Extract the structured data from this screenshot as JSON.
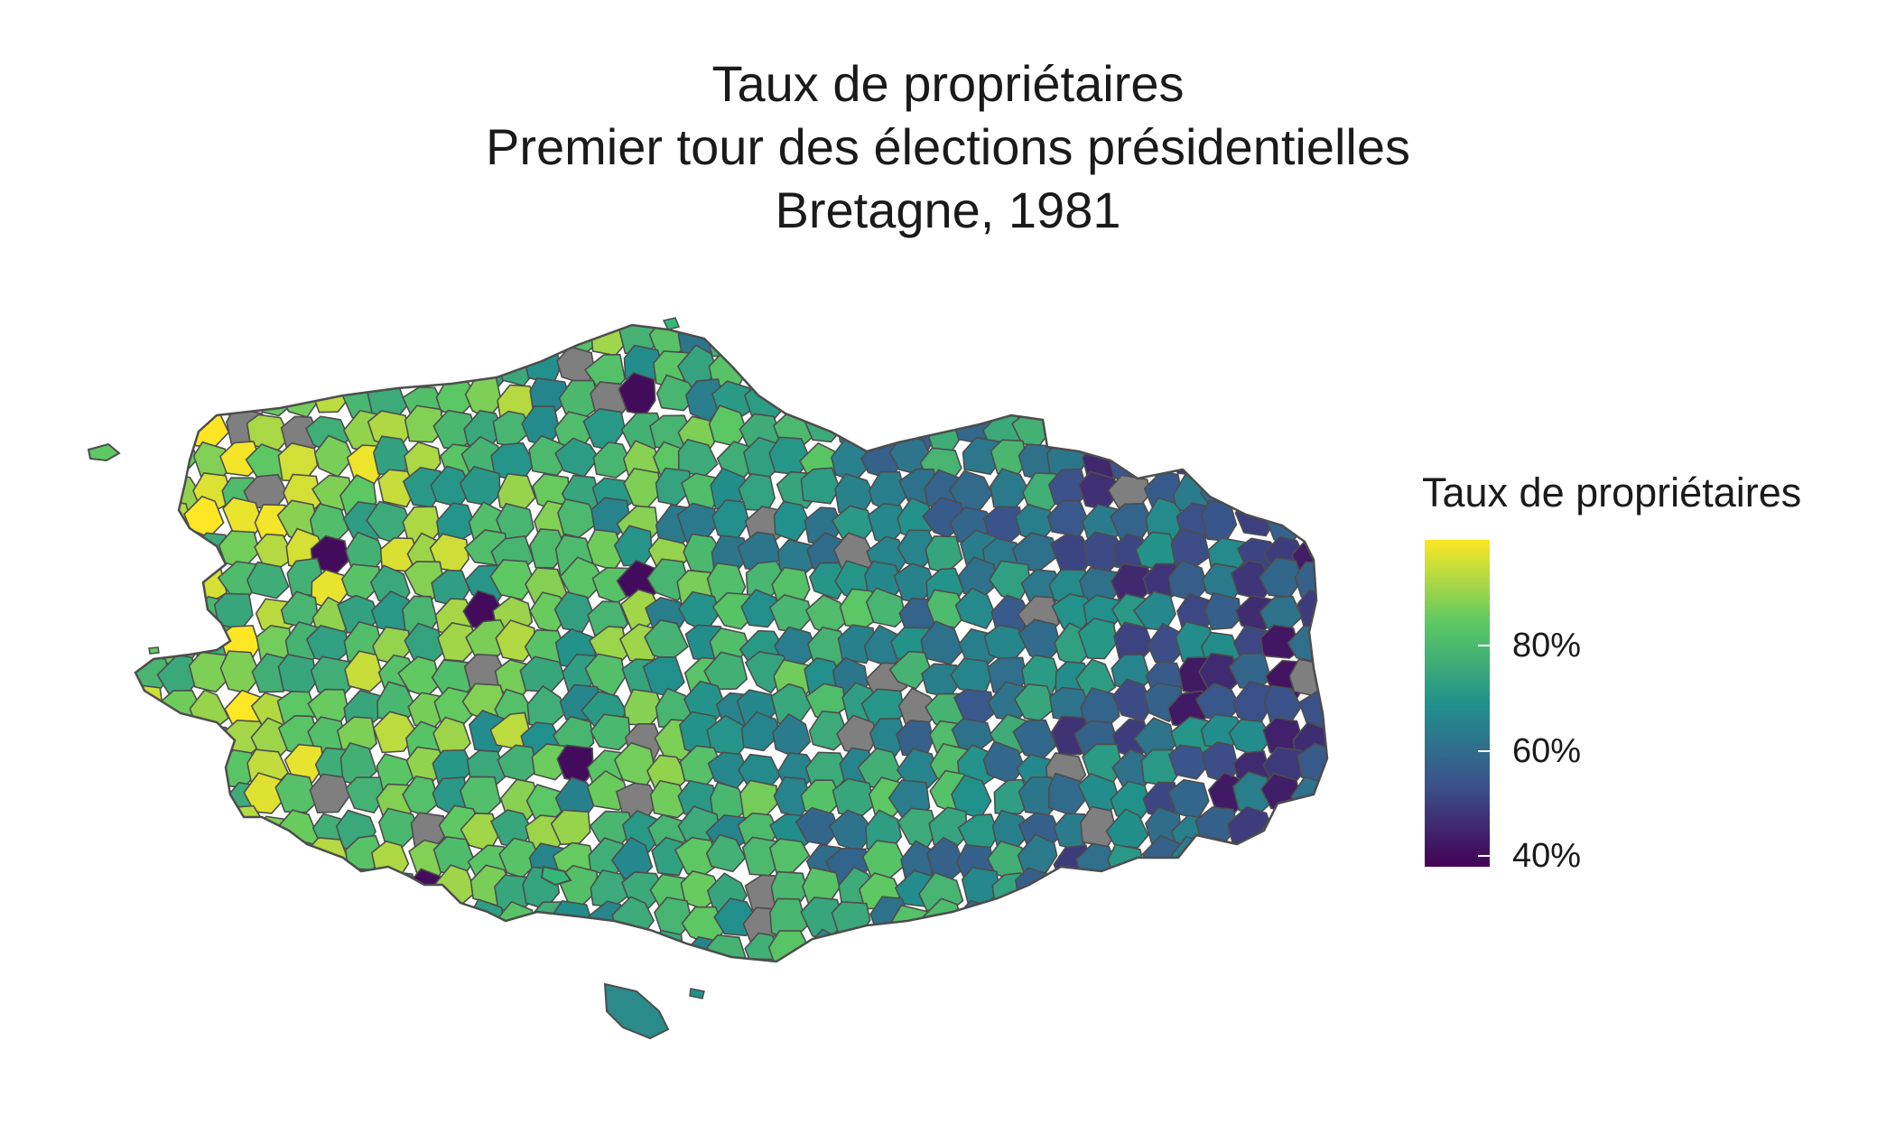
{
  "title": {
    "line1": "Taux de propriétaires",
    "line2": "Premier tour des élections présidentielles",
    "line3": "Bretagne, 1981"
  },
  "chart_data": {
    "type": "choropleth",
    "region": "Bretagne",
    "year": 1981,
    "variable": "Taux de propriétaires",
    "legend": {
      "title": "Taux de propriétaires",
      "position": "right",
      "colormap": "viridis",
      "range": [
        0.38,
        1.0
      ],
      "ticks": [
        0.4,
        0.6,
        0.8
      ],
      "tick_labels": [
        "40%",
        "60%",
        "80%"
      ]
    },
    "colors": {
      "low": "#440154",
      "mid_low": "#3b528b",
      "mid": "#21918c",
      "mid_high": "#5ec962",
      "high": "#fde725",
      "missing": "#7f7f7f",
      "border": "#4d4d4d"
    },
    "grid": false
  }
}
